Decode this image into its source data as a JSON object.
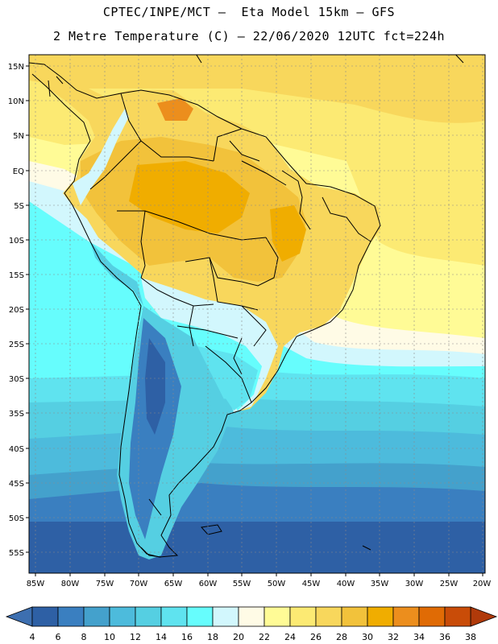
{
  "header": {
    "title_line1": "CPTEC/INPE/MCT –  Eta Model 15km – GFS",
    "title_line2": "2 Metre Temperature (C) – 22/06/2020 12UTC fct=224h"
  },
  "map": {
    "lat_ticks": [
      "15N",
      "10N",
      "5N",
      "EQ",
      "5S",
      "10S",
      "15S",
      "20S",
      "25S",
      "30S",
      "35S",
      "40S",
      "45S",
      "50S",
      "55S"
    ],
    "lon_ticks": [
      "85W",
      "80W",
      "75W",
      "70W",
      "65W",
      "60W",
      "55W",
      "50W",
      "45W",
      "40W",
      "35W",
      "30W",
      "25W",
      "20W"
    ]
  },
  "colorbar": {
    "levels": [
      "4",
      "6",
      "8",
      "10",
      "12",
      "14",
      "16",
      "18",
      "20",
      "22",
      "24",
      "26",
      "28",
      "30",
      "32",
      "34",
      "36",
      "38"
    ],
    "colors": [
      "#2e60a5",
      "#3a7fc0",
      "#44a1cc",
      "#4dbbdc",
      "#55cfe2",
      "#5fe3ef",
      "#66fdfd",
      "#d2f7fd",
      "#fffbe6",
      "#fffb96",
      "#fcea73",
      "#f8d75c",
      "#f2c23b",
      "#f0ad00",
      "#ec8e1d",
      "#e06b05",
      "#c94c08",
      "#b93a06"
    ],
    "low_color": "#3d6fb0",
    "high_color": "#b03a0a"
  }
}
